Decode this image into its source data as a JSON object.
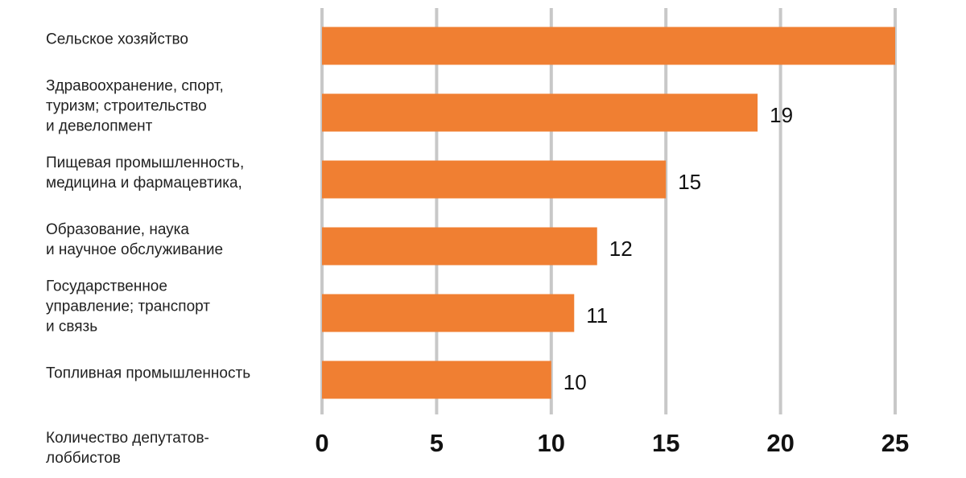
{
  "chart_data": {
    "type": "barh",
    "categories": [
      "Сельское хозяйство",
      "Здравоохранение, спорт,\nтуризм; строительство\nи девелопмент",
      "Пищевая промышленность,\nмедицина и фармацевтика,",
      "Образование, наука\nи научное обслуживание",
      "Государственное\nуправление; транспорт\nи связь",
      "Топливная промышленность"
    ],
    "values": [
      25,
      19,
      15,
      12,
      11,
      10
    ],
    "color": "#f07f32",
    "xlabel": "Количество депутатов-\nлоббистов",
    "xlim": [
      0,
      25
    ],
    "xticks": [
      0,
      5,
      10,
      15,
      20,
      25
    ],
    "grid": true
  }
}
